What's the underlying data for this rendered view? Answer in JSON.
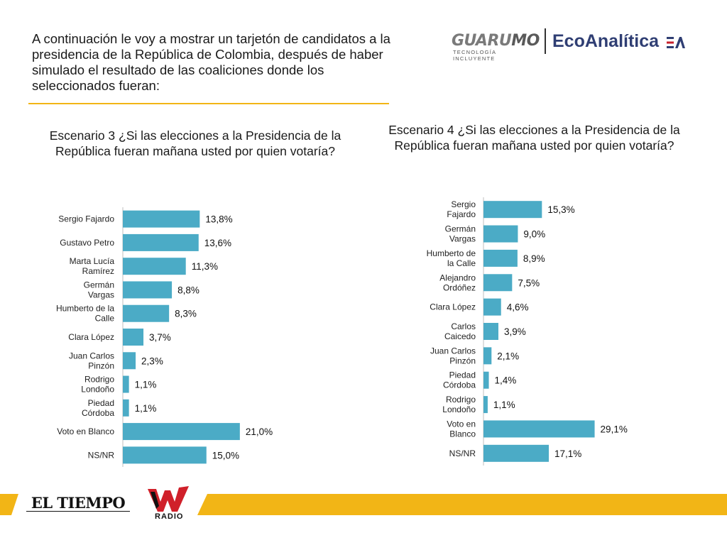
{
  "intro": {
    "text": "A continuación le voy a mostrar un tarjetón de candidatos a la presidencia de la República de Colombia, después de haber simulado el resultado de las coaliciones donde los seleccionados fueran:"
  },
  "logos": {
    "guarumo_prefix": "GUARU",
    "guarumo_suffix": "MO",
    "guarumo_tagline": "TECNOLOGÍA INCLUYENTE",
    "ecoanalitica": "EcoAnalítica",
    "el_tiempo": "EL TIEMPO",
    "w_radio": "RADIO"
  },
  "colors": {
    "bar": "#4babc6",
    "accent_yellow": "#f2b516",
    "brand_navy": "#2f3e73"
  },
  "chart_data": [
    {
      "type": "bar",
      "orientation": "horizontal",
      "title": "Escenario 3 ¿Si las elecciones a la Presidencia de la República fueran mañana usted por quien votaría?",
      "categories": [
        "Sergio Fajardo",
        "Gustavo Petro",
        "Marta Lucía Ramírez",
        "Germán Vargas",
        "Humberto de la Calle",
        "Clara López",
        "Juan Carlos Pinzón",
        "Rodrigo Londoño",
        "Piedad Córdoba",
        "Voto en Blanco",
        "NS/NR"
      ],
      "category_lines": [
        [
          "Sergio Fajardo"
        ],
        [
          "Gustavo Petro"
        ],
        [
          "Marta Lucía",
          "Ramírez"
        ],
        [
          "Germán",
          "Vargas"
        ],
        [
          "Humberto de la",
          "Calle"
        ],
        [
          "Clara López"
        ],
        [
          "Juan Carlos",
          "Pinzón"
        ],
        [
          "Rodrigo",
          "Londoño"
        ],
        [
          "Piedad",
          "Córdoba"
        ],
        [
          "Voto en Blanco"
        ],
        [
          "NS/NR"
        ]
      ],
      "values": [
        13.8,
        13.6,
        11.3,
        8.8,
        8.3,
        3.7,
        2.3,
        1.1,
        1.1,
        21.0,
        15.0
      ],
      "value_labels": [
        "13,8%",
        "13,6%",
        "11,3%",
        "8,8%",
        "8,3%",
        "3,7%",
        "2,3%",
        "1,1%",
        "1,1%",
        "21,0%",
        "15,0%"
      ],
      "unit": "%"
    },
    {
      "type": "bar",
      "orientation": "horizontal",
      "title": "Escenario 4 ¿Si las elecciones a la Presidencia de la República fueran mañana usted por quien votaría?",
      "categories": [
        "Sergio Fajardo",
        "Germán Vargas",
        "Humberto de la Calle",
        "Alejandro Ordóñez",
        "Clara López",
        "Carlos Caicedo",
        "Juan Carlos Pinzón",
        "Piedad Córdoba",
        "Rodrigo Londoño",
        "Voto en Blanco",
        "NS/NR"
      ],
      "category_lines": [
        [
          "Sergio",
          "Fajardo"
        ],
        [
          "Germán",
          "Vargas"
        ],
        [
          "Humberto de",
          "la Calle"
        ],
        [
          "Alejandro",
          "Ordóñez"
        ],
        [
          "Clara López"
        ],
        [
          "Carlos",
          "Caicedo"
        ],
        [
          "Juan Carlos",
          "Pinzón"
        ],
        [
          "Piedad",
          "Córdoba"
        ],
        [
          "Rodrigo",
          "Londoño"
        ],
        [
          "Voto en",
          "Blanco"
        ],
        [
          "NS/NR"
        ]
      ],
      "values": [
        15.3,
        9.0,
        8.9,
        7.5,
        4.6,
        3.9,
        2.1,
        1.4,
        1.1,
        29.1,
        17.1
      ],
      "value_labels": [
        "15,3%",
        "9,0%",
        "8,9%",
        "7,5%",
        "4,6%",
        "3,9%",
        "2,1%",
        "1,4%",
        "1,1%",
        "29,1%",
        "17,1%"
      ],
      "unit": "%"
    }
  ]
}
